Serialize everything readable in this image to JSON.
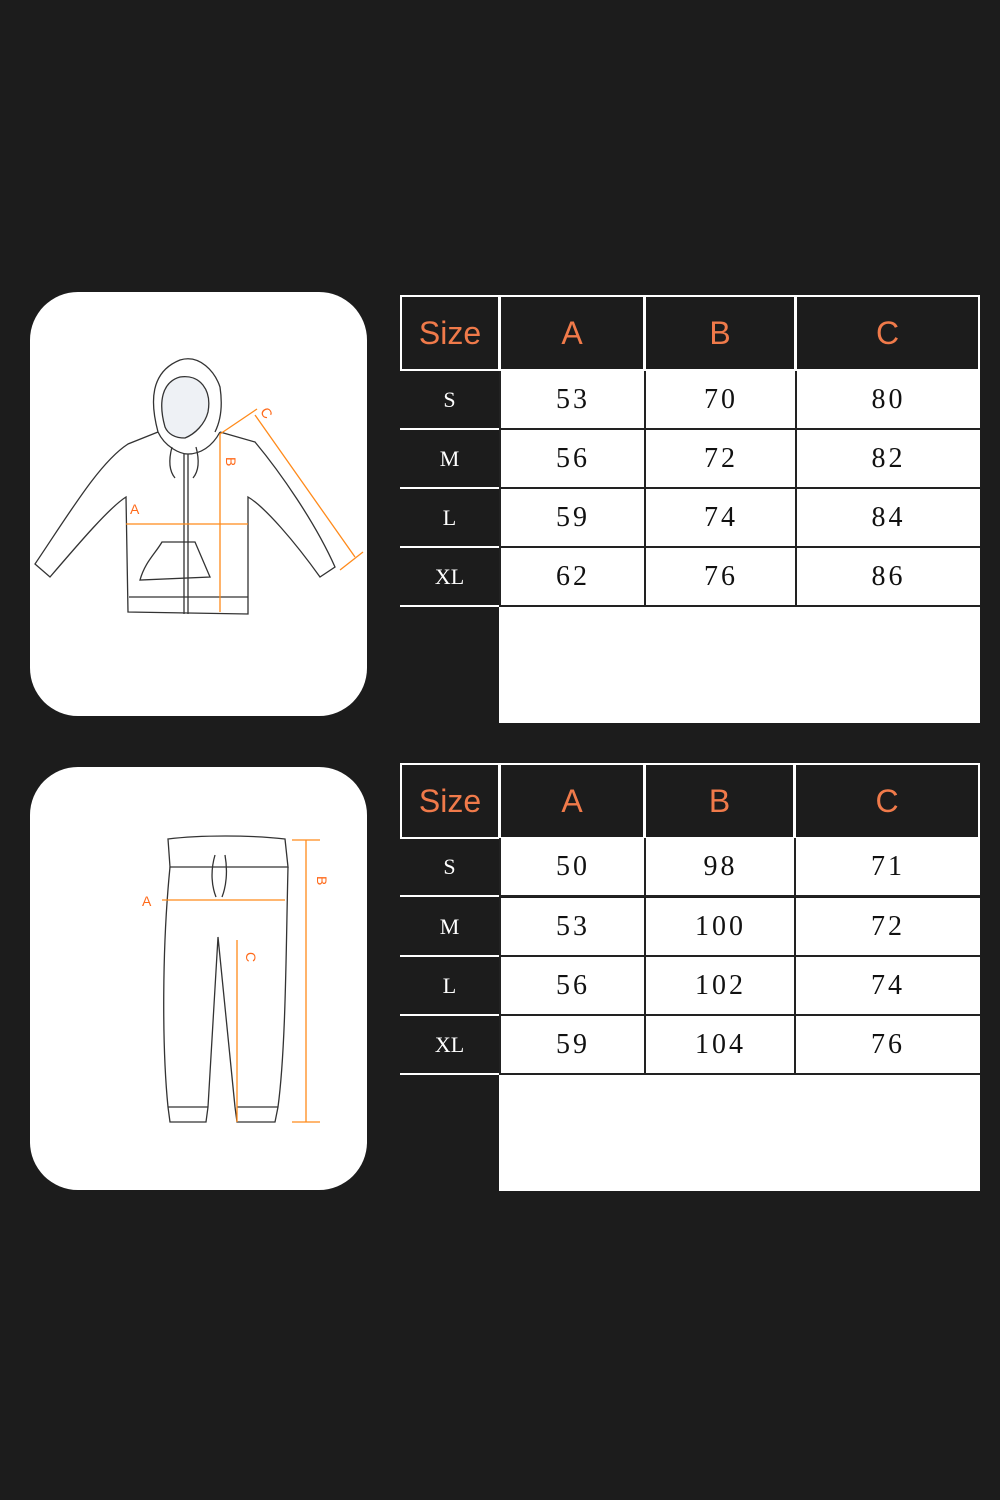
{
  "colors": {
    "background": "#1c1c1c",
    "header_text": "#f07a4a",
    "measure_line": "#ff6a1a"
  },
  "hoodie": {
    "diagram_labels": {
      "a": "A",
      "b": "B",
      "c": "C"
    },
    "table": {
      "headers": [
        "Size",
        "A",
        "B",
        "C"
      ],
      "rows": [
        {
          "size": "S",
          "a": "53",
          "b": "70",
          "c": "80"
        },
        {
          "size": "M",
          "a": "56",
          "b": "72",
          "c": "82"
        },
        {
          "size": "L",
          "a": "59",
          "b": "74",
          "c": "84"
        },
        {
          "size": "XL",
          "a": "62",
          "b": "76",
          "c": "86"
        }
      ]
    }
  },
  "pants": {
    "diagram_labels": {
      "a": "A",
      "b": "B",
      "c": "C"
    },
    "table": {
      "headers": [
        "Size",
        "A",
        "B",
        "C"
      ],
      "rows": [
        {
          "size": "S",
          "a": "50",
          "b": "98",
          "c": "71"
        },
        {
          "size": "M",
          "a": "53",
          "b": "100",
          "c": "72"
        },
        {
          "size": "L",
          "a": "56",
          "b": "102",
          "c": "74"
        },
        {
          "size": "XL",
          "a": "59",
          "b": "104",
          "c": "76"
        }
      ]
    }
  }
}
